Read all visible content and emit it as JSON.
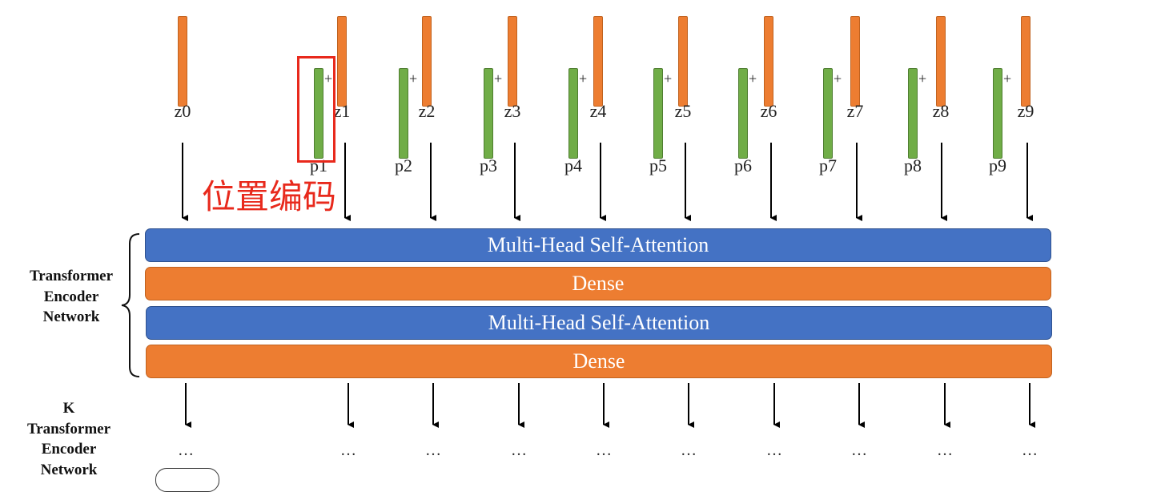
{
  "tokens": {
    "z_labels": [
      "z0",
      "z1",
      "z2",
      "z3",
      "z4",
      "z5",
      "z6",
      "z7",
      "z8",
      "z9"
    ],
    "p_labels": [
      "p1",
      "p2",
      "p3",
      "p4",
      "p5",
      "p6",
      "p7",
      "p8",
      "p9"
    ],
    "plus_sign": "+"
  },
  "annotation": {
    "text": "位置编码"
  },
  "layers": [
    {
      "label": "Multi-Head Self-Attention",
      "kind": "attention"
    },
    {
      "label": "Dense",
      "kind": "dense"
    },
    {
      "label": "Multi-Head Self-Attention",
      "kind": "attention"
    },
    {
      "label": "Dense",
      "kind": "dense"
    }
  ],
  "side_labels": {
    "encoder": [
      "Transformer",
      "Encoder",
      "Network"
    ],
    "k_encoder": [
      "K",
      "Transformer",
      "Encoder",
      "Network"
    ]
  },
  "ellipsis": "…",
  "colors": {
    "orange": "#ED7D31",
    "green": "#70AD47",
    "blue": "#4472C4",
    "highlight_red": "#E8291C"
  }
}
